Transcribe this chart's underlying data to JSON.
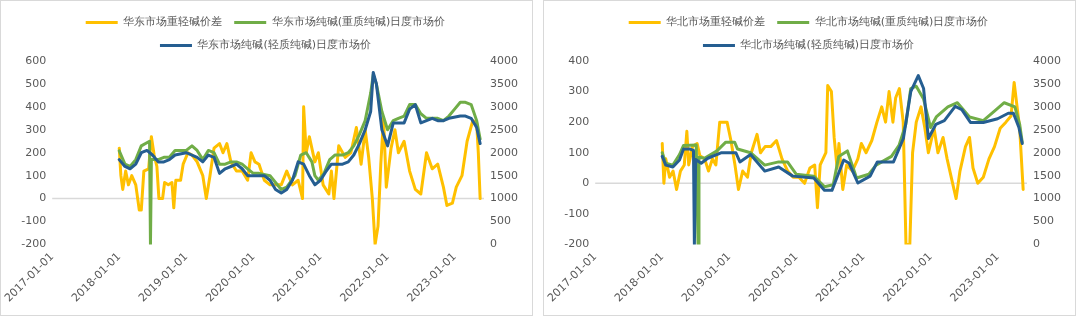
{
  "chart_data": [
    {
      "type": "line",
      "xlim": [
        "2017-01-01",
        "2023-06-10"
      ],
      "xticks": [
        "2017-01-01",
        "2018-01-01",
        "2019-01-01",
        "2020-01-01",
        "2021-01-01",
        "2022-01-01",
        "2023-01-01"
      ],
      "ylim": [
        -200,
        600
      ],
      "yticks": [
        -200,
        -100,
        0,
        100,
        200,
        300,
        400,
        500,
        600
      ],
      "y2lim": [
        0,
        4000
      ],
      "y2ticks": [
        0,
        500,
        1000,
        1500,
        2000,
        2500,
        3000,
        3500,
        4000
      ],
      "grid": false,
      "legend": "top",
      "marker": "none",
      "ref_lines": [
        {
          "axis": "y",
          "value": 0,
          "color": "#d9d9d9"
        }
      ],
      "series": [
        {
          "name": "华东市场重轻碱价差",
          "color": "#ffc000",
          "x": [
            "2018-01-01",
            "2018-01-10",
            "2018-01-20",
            "2018-02-05",
            "2018-02-20",
            "2018-03-10",
            "2018-04-01",
            "2018-04-20",
            "2018-05-01",
            "2018-05-15",
            "2018-06-10",
            "2018-06-25",
            "2018-07-10",
            "2018-07-25",
            "2018-08-05",
            "2018-08-25",
            "2018-09-05",
            "2018-09-25",
            "2018-10-15",
            "2018-10-25",
            "2018-11-05",
            "2018-12-01",
            "2018-12-15",
            "2019-01-10",
            "2019-02-01",
            "2019-03-01",
            "2019-04-01",
            "2019-04-20",
            "2019-05-10",
            "2019-06-01",
            "2019-07-01",
            "2019-07-20",
            "2019-08-10",
            "2019-09-01",
            "2019-10-01",
            "2019-11-01",
            "2019-12-01",
            "2019-12-20",
            "2020-01-10",
            "2020-02-01",
            "2020-03-01",
            "2020-04-01",
            "2020-06-01",
            "2020-07-01",
            "2020-08-01",
            "2020-09-01",
            "2020-09-25",
            "2020-10-01",
            "2020-10-15",
            "2020-11-01",
            "2020-12-01",
            "2020-12-20",
            "2021-01-15",
            "2021-02-15",
            "2021-03-01",
            "2021-03-15",
            "2021-04-10",
            "2021-05-15",
            "2021-06-15",
            "2021-07-15",
            "2021-08-10",
            "2021-09-01",
            "2021-09-20",
            "2021-10-10",
            "2021-10-25",
            "2021-11-10",
            "2021-11-25",
            "2021-12-10",
            "2021-12-25",
            "2022-01-20",
            "2022-02-10",
            "2022-03-01",
            "2022-04-01",
            "2022-05-01",
            "2022-06-01",
            "2022-07-01",
            "2022-08-01",
            "2022-09-01",
            "2022-10-01",
            "2022-11-01",
            "2022-11-20",
            "2022-12-20",
            "2023-01-10",
            "2023-02-10",
            "2023-03-10",
            "2023-04-10",
            "2023-05-01",
            "2023-05-10",
            "2023-05-20"
          ],
          "values": [
            220,
            100,
            40,
            120,
            60,
            100,
            60,
            -50,
            -50,
            120,
            130,
            270,
            190,
            140,
            0,
            0,
            70,
            60,
            70,
            -40,
            80,
            80,
            150,
            200,
            190,
            160,
            100,
            0,
            100,
            220,
            240,
            200,
            240,
            160,
            120,
            120,
            80,
            200,
            160,
            150,
            80,
            60,
            60,
            120,
            60,
            80,
            0,
            400,
            200,
            270,
            160,
            200,
            60,
            20,
            120,
            0,
            230,
            180,
            200,
            310,
            150,
            300,
            180,
            0,
            -200,
            -120,
            150,
            350,
            50,
            220,
            300,
            200,
            250,
            120,
            40,
            20,
            200,
            130,
            150,
            50,
            -30,
            -20,
            50,
            100,
            250,
            340,
            330,
            200,
            0
          ]
        },
        {
          "name": "华东市场纯碱(重质纯碱)日度市场价",
          "color": "#70ad47",
          "axis": "y2",
          "x": [
            "2018-01-01",
            "2018-02-01",
            "2018-03-01",
            "2018-04-01",
            "2018-05-01",
            "2018-06-15",
            "2018-06-20",
            "2018-06-25",
            "2018-08-01",
            "2018-09-01",
            "2018-10-01",
            "2018-11-01",
            "2019-01-01",
            "2019-02-01",
            "2019-03-01",
            "2019-04-01",
            "2019-05-01",
            "2019-06-01",
            "2019-07-01",
            "2019-08-01",
            "2019-09-01",
            "2019-10-01",
            "2019-11-01",
            "2019-12-01",
            "2020-01-01",
            "2020-02-01",
            "2020-04-01",
            "2020-05-01",
            "2020-06-01",
            "2020-07-01",
            "2020-08-15",
            "2020-09-15",
            "2020-10-15",
            "2020-11-15",
            "2020-12-01",
            "2020-12-20",
            "2021-01-20",
            "2021-02-20",
            "2021-03-20",
            "2021-05-01",
            "2021-06-01",
            "2021-07-01",
            "2021-08-01",
            "2021-09-01",
            "2021-10-01",
            "2021-10-15",
            "2021-11-01",
            "2021-12-01",
            "2022-01-01",
            "2022-02-01",
            "2022-03-01",
            "2022-04-01",
            "2022-05-01",
            "2022-06-01",
            "2022-07-01",
            "2022-08-01",
            "2022-09-01",
            "2022-10-01",
            "2022-11-01",
            "2022-12-01",
            "2023-01-01",
            "2023-02-01",
            "2023-03-01",
            "2023-04-01",
            "2023-05-01",
            "2023-05-20"
          ],
          "values": [
            2040,
            1750,
            1700,
            1850,
            2150,
            2250,
            0,
            1850,
            1850,
            1900,
            1900,
            2050,
            2050,
            2150,
            2050,
            1850,
            2050,
            2000,
            1750,
            1750,
            1800,
            1800,
            1750,
            1650,
            1550,
            1550,
            1500,
            1350,
            1200,
            1250,
            1500,
            1950,
            2000,
            1800,
            1500,
            1400,
            1550,
            1850,
            1950,
            1950,
            2000,
            2150,
            2400,
            2700,
            3300,
            3700,
            3500,
            2900,
            2500,
            2700,
            2750,
            2800,
            3050,
            3050,
            2850,
            2750,
            2750,
            2750,
            2700,
            2800,
            2950,
            3100,
            3100,
            3050,
            2700,
            2300
          ]
        },
        {
          "name": "华东市场纯碱(轻质纯碱)日度市场价",
          "color": "#255e91",
          "axis": "y2",
          "x": [
            "2018-01-01",
            "2018-02-01",
            "2018-03-01",
            "2018-04-01",
            "2018-05-01",
            "2018-06-01",
            "2018-07-01",
            "2018-08-01",
            "2018-09-01",
            "2018-10-01",
            "2018-11-01",
            "2019-01-01",
            "2019-02-01",
            "2019-03-01",
            "2019-04-01",
            "2019-05-01",
            "2019-06-01",
            "2019-07-01",
            "2019-08-01",
            "2019-09-01",
            "2019-10-01",
            "2019-11-01",
            "2019-12-01",
            "2020-01-01",
            "2020-03-01",
            "2020-04-01",
            "2020-05-01",
            "2020-06-01",
            "2020-07-01",
            "2020-08-01",
            "2020-09-01",
            "2020-10-01",
            "2020-11-01",
            "2020-12-01",
            "2021-01-01",
            "2021-02-01",
            "2021-03-01",
            "2021-05-01",
            "2021-06-01",
            "2021-07-01",
            "2021-08-01",
            "2021-09-01",
            "2021-10-01",
            "2021-10-15",
            "2021-11-01",
            "2021-12-01",
            "2022-01-01",
            "2022-02-01",
            "2022-03-01",
            "2022-04-01",
            "2022-05-01",
            "2022-06-01",
            "2022-07-01",
            "2022-08-01",
            "2022-09-01",
            "2022-10-01",
            "2022-11-01",
            "2022-12-01",
            "2023-02-01",
            "2023-03-01",
            "2023-04-01",
            "2023-05-01",
            "2023-05-20"
          ],
          "values": [
            1850,
            1700,
            1650,
            1750,
            2000,
            2050,
            1950,
            1800,
            1800,
            1850,
            1950,
            2000,
            1950,
            1900,
            1800,
            1950,
            1900,
            1550,
            1650,
            1700,
            1750,
            1650,
            1500,
            1500,
            1500,
            1400,
            1200,
            1120,
            1200,
            1400,
            1800,
            1750,
            1500,
            1300,
            1400,
            1600,
            1750,
            1750,
            1800,
            1950,
            2200,
            2500,
            2900,
            3750,
            3500,
            2500,
            2150,
            2650,
            2650,
            2650,
            2950,
            3050,
            2650,
            2700,
            2750,
            2700,
            2700,
            2750,
            2800,
            2800,
            2750,
            2550,
            2200
          ]
        }
      ]
    },
    {
      "type": "line",
      "xlim": [
        "2017-01-01",
        "2023-06-10"
      ],
      "xticks": [
        "2017-01-01",
        "2018-01-01",
        "2019-01-01",
        "2020-01-01",
        "2021-01-01",
        "2022-01-01",
        "2023-01-01"
      ],
      "ylim": [
        -200,
        400
      ],
      "yticks": [
        -200,
        -100,
        0,
        100,
        200,
        300,
        400
      ],
      "y2lim": [
        0,
        4000
      ],
      "y2ticks": [
        0,
        500,
        1000,
        1500,
        2000,
        2500,
        3000,
        3500,
        4000
      ],
      "grid": false,
      "legend": "top",
      "marker": "none",
      "ref_lines": [
        {
          "axis": "y",
          "value": 0,
          "color": "#d9d9d9"
        }
      ],
      "series": [
        {
          "name": "华北市场重轻碱价差",
          "color": "#ffc000",
          "x": [
            "2018-01-01",
            "2018-01-10",
            "2018-01-20",
            "2018-02-10",
            "2018-03-01",
            "2018-03-20",
            "2018-04-10",
            "2018-05-01",
            "2018-05-15",
            "2018-05-25",
            "2018-06-15",
            "2018-07-10",
            "2018-07-25",
            "2018-08-20",
            "2018-09-10",
            "2018-10-01",
            "2018-10-20",
            "2018-11-10",
            "2018-12-01",
            "2018-12-20",
            "2019-01-10",
            "2019-02-01",
            "2019-02-20",
            "2019-03-15",
            "2019-04-10",
            "2019-05-01",
            "2019-06-01",
            "2019-06-20",
            "2019-07-15",
            "2019-08-15",
            "2019-09-15",
            "2019-10-15",
            "2019-11-15",
            "2019-12-15",
            "2020-01-15",
            "2020-02-15",
            "2020-03-15",
            "2020-04-10",
            "2020-04-25",
            "2020-05-10",
            "2020-06-10",
            "2020-06-20",
            "2020-07-10",
            "2020-07-25",
            "2020-08-10",
            "2020-08-20",
            "2020-09-10",
            "2020-10-01",
            "2020-11-01",
            "2020-12-01",
            "2020-12-20",
            "2021-01-15",
            "2021-02-15",
            "2021-03-15",
            "2021-04-10",
            "2021-05-01",
            "2021-05-20",
            "2021-06-10",
            "2021-06-25",
            "2021-07-15",
            "2021-08-05",
            "2021-08-20",
            "2021-09-10",
            "2021-09-25",
            "2021-10-15",
            "2021-11-10",
            "2021-12-01",
            "2021-12-20",
            "2022-01-20",
            "2022-02-10",
            "2022-03-10",
            "2022-04-01",
            "2022-05-01",
            "2022-05-20",
            "2022-06-10",
            "2022-07-10",
            "2022-08-01",
            "2022-08-20",
            "2022-09-15",
            "2022-10-15",
            "2022-11-15",
            "2022-12-15",
            "2023-01-15",
            "2023-02-15",
            "2023-03-15",
            "2023-04-01",
            "2023-04-15",
            "2023-05-01",
            "2023-05-20"
          ],
          "values": [
            130,
            0,
            80,
            20,
            40,
            -20,
            40,
            60,
            170,
            60,
            120,
            130,
            90,
            80,
            40,
            80,
            60,
            200,
            200,
            200,
            140,
            60,
            -20,
            40,
            20,
            100,
            160,
            100,
            120,
            120,
            140,
            80,
            40,
            20,
            20,
            0,
            50,
            60,
            -80,
            60,
            100,
            320,
            300,
            150,
            50,
            130,
            -20,
            60,
            40,
            80,
            130,
            100,
            140,
            200,
            250,
            200,
            300,
            200,
            280,
            310,
            200,
            -200,
            -200,
            100,
            200,
            250,
            180,
            100,
            180,
            100,
            150,
            80,
            0,
            -50,
            40,
            120,
            150,
            50,
            0,
            20,
            80,
            120,
            180,
            200,
            220,
            330,
            260,
            180,
            -20
          ]
        },
        {
          "name": "华北市场纯碱(重质纯碱)日度市场价",
          "color": "#70ad47",
          "axis": "y2",
          "x": [
            "2018-01-01",
            "2018-01-20",
            "2018-02-28",
            "2018-04-05",
            "2018-04-27",
            "2018-07-05",
            "2018-07-15",
            "2018-07-20",
            "2018-08-19",
            "2018-10-26",
            "2018-12-13",
            "2019-01-30",
            "2019-02-15",
            "2019-04-27",
            "2019-07-13",
            "2019-09-27",
            "2019-11-14",
            "2020-01-01",
            "2020-04-05",
            "2020-06-02",
            "2020-07-20",
            "2020-08-19",
            "2020-10-05",
            "2020-11-24",
            "2021-01-30",
            "2021-03-10",
            "2021-06-02",
            "2021-07-13",
            "2021-08-19",
            "2021-09-15",
            "2021-10-15",
            "2021-11-24",
            "2022-01-01",
            "2022-02-01",
            "2022-04-05",
            "2022-05-27",
            "2022-08-01",
            "2022-10-15",
            "2022-12-13",
            "2023-02-06",
            "2023-04-05",
            "2023-05-01",
            "2023-05-15"
          ],
          "values": [
            2000,
            1770,
            1730,
            1960,
            2160,
            2170,
            0,
            1900,
            1880,
            2040,
            2230,
            2230,
            2080,
            2000,
            1730,
            1800,
            1800,
            1530,
            1490,
            1260,
            1300,
            1920,
            2040,
            1450,
            1530,
            1730,
            1920,
            2160,
            2620,
            3400,
            3450,
            3170,
            2550,
            2780,
            3000,
            3090,
            2780,
            2700,
            2900,
            3090,
            3000,
            2620,
            2230
          ]
        },
        {
          "name": "华北市场纯碱(轻质纯碱)日度市场价",
          "color": "#255e91",
          "axis": "y2",
          "x": [
            "2018-01-01",
            "2018-01-20",
            "2018-02-28",
            "2018-04-05",
            "2018-04-27",
            "2018-06-02",
            "2018-06-20",
            "2018-06-25",
            "2018-07-02",
            "2018-08-01",
            "2018-09-06",
            "2018-11-20",
            "2019-02-06",
            "2019-02-28",
            "2019-04-27",
            "2019-07-13",
            "2019-09-27",
            "2019-12-13",
            "2020-04-05",
            "2020-06-02",
            "2020-07-13",
            "2020-09-15",
            "2020-10-15",
            "2020-12-01",
            "2021-02-06",
            "2021-03-17",
            "2021-06-13",
            "2021-08-06",
            "2021-09-15",
            "2021-10-26",
            "2021-11-24",
            "2021-12-20",
            "2022-01-30",
            "2022-03-17",
            "2022-05-15",
            "2022-06-20",
            "2022-08-06",
            "2022-10-15",
            "2023-01-01",
            "2023-02-28",
            "2023-03-28",
            "2023-04-27",
            "2023-05-15"
          ],
          "values": [
            1920,
            1730,
            1690,
            1840,
            2080,
            2080,
            2050,
            0,
            1850,
            1770,
            1880,
            2000,
            2000,
            1800,
            1960,
            1600,
            1690,
            1490,
            1450,
            1180,
            1180,
            1840,
            1770,
            1340,
            1490,
            1800,
            1800,
            2310,
            3330,
            3680,
            3400,
            2310,
            2620,
            2700,
            3010,
            2940,
            2660,
            2660,
            2740,
            2860,
            2860,
            2550,
            2200
          ]
        }
      ]
    }
  ]
}
